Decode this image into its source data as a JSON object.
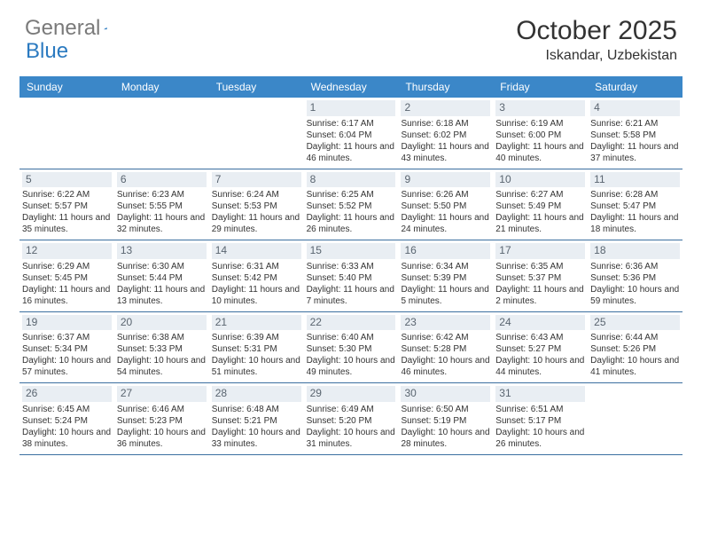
{
  "branding": {
    "logo_text_1": "General",
    "logo_text_2": "Blue",
    "logo_color_gray": "#7a7a7a",
    "logo_color_blue": "#2b7ac0"
  },
  "header": {
    "month_title": "October 2025",
    "location": "Iskandar, Uzbekistan"
  },
  "colors": {
    "header_bg": "#3b87c8",
    "header_text": "#ffffff",
    "daynum_bg": "#e9eef3",
    "daynum_text": "#5a6570",
    "border": "#3b6fa0",
    "body_text": "#333333",
    "page_bg": "#ffffff"
  },
  "day_names": [
    "Sunday",
    "Monday",
    "Tuesday",
    "Wednesday",
    "Thursday",
    "Friday",
    "Saturday"
  ],
  "weeks": [
    [
      null,
      null,
      null,
      {
        "n": "1",
        "sr": "Sunrise: 6:17 AM",
        "ss": "Sunset: 6:04 PM",
        "dl": "Daylight: 11 hours and 46 minutes."
      },
      {
        "n": "2",
        "sr": "Sunrise: 6:18 AM",
        "ss": "Sunset: 6:02 PM",
        "dl": "Daylight: 11 hours and 43 minutes."
      },
      {
        "n": "3",
        "sr": "Sunrise: 6:19 AM",
        "ss": "Sunset: 6:00 PM",
        "dl": "Daylight: 11 hours and 40 minutes."
      },
      {
        "n": "4",
        "sr": "Sunrise: 6:21 AM",
        "ss": "Sunset: 5:58 PM",
        "dl": "Daylight: 11 hours and 37 minutes."
      }
    ],
    [
      {
        "n": "5",
        "sr": "Sunrise: 6:22 AM",
        "ss": "Sunset: 5:57 PM",
        "dl": "Daylight: 11 hours and 35 minutes."
      },
      {
        "n": "6",
        "sr": "Sunrise: 6:23 AM",
        "ss": "Sunset: 5:55 PM",
        "dl": "Daylight: 11 hours and 32 minutes."
      },
      {
        "n": "7",
        "sr": "Sunrise: 6:24 AM",
        "ss": "Sunset: 5:53 PM",
        "dl": "Daylight: 11 hours and 29 minutes."
      },
      {
        "n": "8",
        "sr": "Sunrise: 6:25 AM",
        "ss": "Sunset: 5:52 PM",
        "dl": "Daylight: 11 hours and 26 minutes."
      },
      {
        "n": "9",
        "sr": "Sunrise: 6:26 AM",
        "ss": "Sunset: 5:50 PM",
        "dl": "Daylight: 11 hours and 24 minutes."
      },
      {
        "n": "10",
        "sr": "Sunrise: 6:27 AM",
        "ss": "Sunset: 5:49 PM",
        "dl": "Daylight: 11 hours and 21 minutes."
      },
      {
        "n": "11",
        "sr": "Sunrise: 6:28 AM",
        "ss": "Sunset: 5:47 PM",
        "dl": "Daylight: 11 hours and 18 minutes."
      }
    ],
    [
      {
        "n": "12",
        "sr": "Sunrise: 6:29 AM",
        "ss": "Sunset: 5:45 PM",
        "dl": "Daylight: 11 hours and 16 minutes."
      },
      {
        "n": "13",
        "sr": "Sunrise: 6:30 AM",
        "ss": "Sunset: 5:44 PM",
        "dl": "Daylight: 11 hours and 13 minutes."
      },
      {
        "n": "14",
        "sr": "Sunrise: 6:31 AM",
        "ss": "Sunset: 5:42 PM",
        "dl": "Daylight: 11 hours and 10 minutes."
      },
      {
        "n": "15",
        "sr": "Sunrise: 6:33 AM",
        "ss": "Sunset: 5:40 PM",
        "dl": "Daylight: 11 hours and 7 minutes."
      },
      {
        "n": "16",
        "sr": "Sunrise: 6:34 AM",
        "ss": "Sunset: 5:39 PM",
        "dl": "Daylight: 11 hours and 5 minutes."
      },
      {
        "n": "17",
        "sr": "Sunrise: 6:35 AM",
        "ss": "Sunset: 5:37 PM",
        "dl": "Daylight: 11 hours and 2 minutes."
      },
      {
        "n": "18",
        "sr": "Sunrise: 6:36 AM",
        "ss": "Sunset: 5:36 PM",
        "dl": "Daylight: 10 hours and 59 minutes."
      }
    ],
    [
      {
        "n": "19",
        "sr": "Sunrise: 6:37 AM",
        "ss": "Sunset: 5:34 PM",
        "dl": "Daylight: 10 hours and 57 minutes."
      },
      {
        "n": "20",
        "sr": "Sunrise: 6:38 AM",
        "ss": "Sunset: 5:33 PM",
        "dl": "Daylight: 10 hours and 54 minutes."
      },
      {
        "n": "21",
        "sr": "Sunrise: 6:39 AM",
        "ss": "Sunset: 5:31 PM",
        "dl": "Daylight: 10 hours and 51 minutes."
      },
      {
        "n": "22",
        "sr": "Sunrise: 6:40 AM",
        "ss": "Sunset: 5:30 PM",
        "dl": "Daylight: 10 hours and 49 minutes."
      },
      {
        "n": "23",
        "sr": "Sunrise: 6:42 AM",
        "ss": "Sunset: 5:28 PM",
        "dl": "Daylight: 10 hours and 46 minutes."
      },
      {
        "n": "24",
        "sr": "Sunrise: 6:43 AM",
        "ss": "Sunset: 5:27 PM",
        "dl": "Daylight: 10 hours and 44 minutes."
      },
      {
        "n": "25",
        "sr": "Sunrise: 6:44 AM",
        "ss": "Sunset: 5:26 PM",
        "dl": "Daylight: 10 hours and 41 minutes."
      }
    ],
    [
      {
        "n": "26",
        "sr": "Sunrise: 6:45 AM",
        "ss": "Sunset: 5:24 PM",
        "dl": "Daylight: 10 hours and 38 minutes."
      },
      {
        "n": "27",
        "sr": "Sunrise: 6:46 AM",
        "ss": "Sunset: 5:23 PM",
        "dl": "Daylight: 10 hours and 36 minutes."
      },
      {
        "n": "28",
        "sr": "Sunrise: 6:48 AM",
        "ss": "Sunset: 5:21 PM",
        "dl": "Daylight: 10 hours and 33 minutes."
      },
      {
        "n": "29",
        "sr": "Sunrise: 6:49 AM",
        "ss": "Sunset: 5:20 PM",
        "dl": "Daylight: 10 hours and 31 minutes."
      },
      {
        "n": "30",
        "sr": "Sunrise: 6:50 AM",
        "ss": "Sunset: 5:19 PM",
        "dl": "Daylight: 10 hours and 28 minutes."
      },
      {
        "n": "31",
        "sr": "Sunrise: 6:51 AM",
        "ss": "Sunset: 5:17 PM",
        "dl": "Daylight: 10 hours and 26 minutes."
      },
      null
    ]
  ]
}
